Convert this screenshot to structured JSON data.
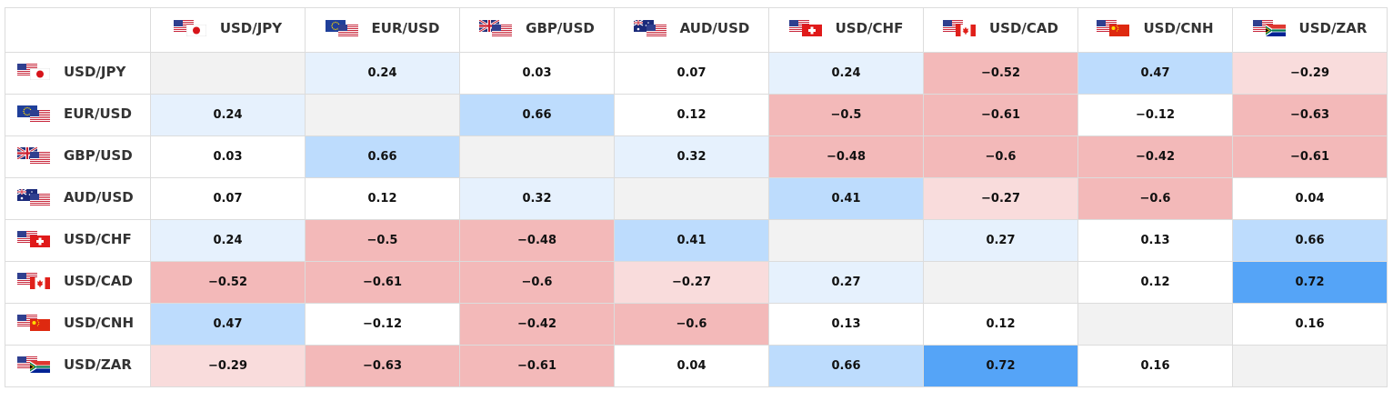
{
  "pairs": [
    {
      "label": "USD/JPY",
      "flag_a": "us-flag-icon",
      "flag_b": "japan-flag-icon"
    },
    {
      "label": "EUR/USD",
      "flag_a": "eu-flag-icon",
      "flag_b": "us-flag-icon"
    },
    {
      "label": "GBP/USD",
      "flag_a": "uk-flag-icon",
      "flag_b": "us-flag-icon"
    },
    {
      "label": "AUD/USD",
      "flag_a": "australia-flag-icon",
      "flag_b": "us-flag-icon"
    },
    {
      "label": "USD/CHF",
      "flag_a": "us-flag-icon",
      "flag_b": "switzerland-flag-icon"
    },
    {
      "label": "USD/CAD",
      "flag_a": "us-flag-icon",
      "flag_b": "canada-flag-icon"
    },
    {
      "label": "USD/CNH",
      "flag_a": "us-flag-icon",
      "flag_b": "china-flag-icon"
    },
    {
      "label": "USD/ZAR",
      "flag_a": "us-flag-icon",
      "flag_b": "south-africa-flag-icon"
    }
  ],
  "matrix": [
    [
      "",
      "0.24",
      "0.03",
      "0.07",
      "0.24",
      "−0.52",
      "0.47",
      "−0.29"
    ],
    [
      "0.24",
      "",
      "0.66",
      "0.12",
      "−0.5",
      "−0.61",
      "−0.12",
      "−0.63"
    ],
    [
      "0.03",
      "0.66",
      "",
      "0.32",
      "−0.48",
      "−0.6",
      "−0.42",
      "−0.61"
    ],
    [
      "0.07",
      "0.12",
      "0.32",
      "",
      "0.41",
      "−0.27",
      "−0.6",
      "0.04"
    ],
    [
      "0.24",
      "−0.5",
      "−0.48",
      "0.41",
      "",
      "0.27",
      "0.13",
      "0.66"
    ],
    [
      "−0.52",
      "−0.61",
      "−0.6",
      "−0.27",
      "0.27",
      "",
      "0.12",
      "0.72"
    ],
    [
      "0.47",
      "−0.12",
      "−0.42",
      "−0.6",
      "0.13",
      "0.12",
      "",
      "0.16"
    ],
    [
      "−0.29",
      "−0.63",
      "−0.61",
      "0.04",
      "0.66",
      "0.72",
      "0.16",
      ""
    ]
  ],
  "colors": {
    "diagonal": "#f2f2f2",
    "neutral": "#ffffff",
    "positive_light": "#e6f1fd",
    "positive_medium": "#bddcfd",
    "positive_strong": "#55a4f7",
    "negative_light": "#f9dcdc",
    "negative_medium": "#f3b9b9"
  }
}
